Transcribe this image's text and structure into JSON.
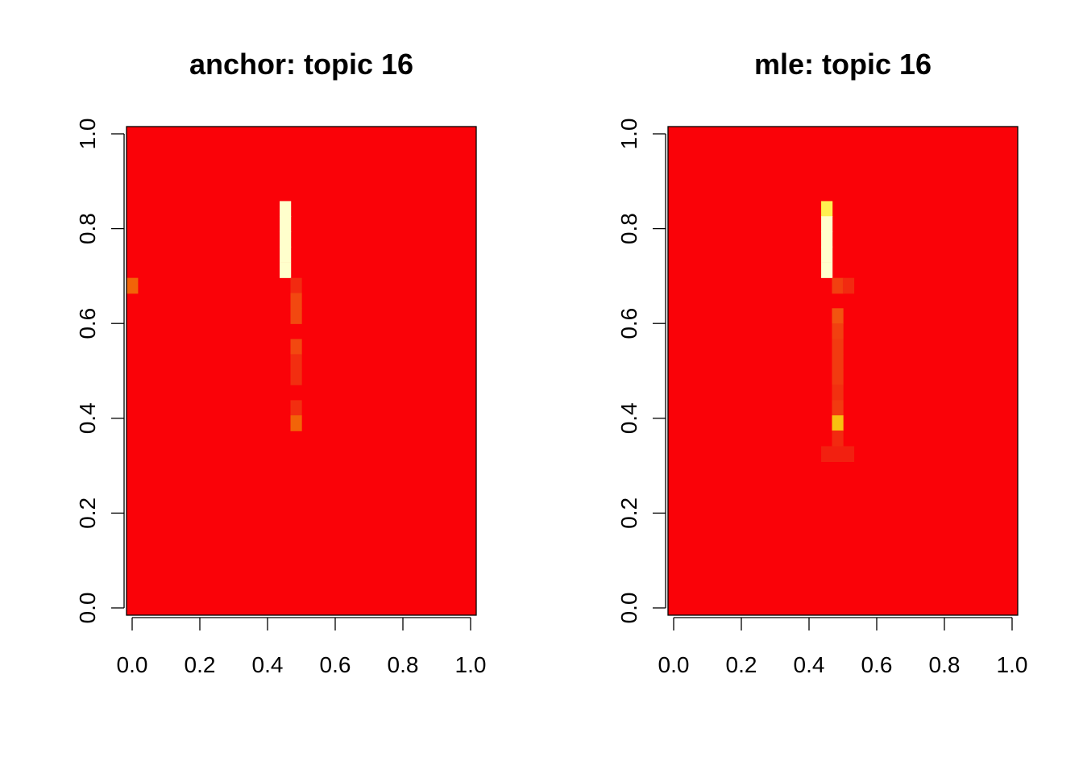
{
  "chart_data": [
    {
      "type": "heatmap",
      "title": "anchor: topic 16",
      "xlabel": "",
      "ylabel": "",
      "xlim": [
        0,
        1
      ],
      "ylim": [
        0,
        1
      ],
      "x_ticks": [
        "0.0",
        "0.2",
        "0.4",
        "0.6",
        "0.8",
        "1.0"
      ],
      "y_ticks": [
        "0.0",
        "0.2",
        "0.4",
        "0.6",
        "0.8",
        "1.0"
      ],
      "grid": false,
      "background_color": "#FA0208",
      "cell_width": 0.0323,
      "cell_height": 0.0323,
      "cells": [
        {
          "x": 0.0,
          "y": 0.68,
          "color": "#F26408"
        },
        {
          "x": 0.452,
          "y": 0.842,
          "color": "#FFFFCC"
        },
        {
          "x": 0.452,
          "y": 0.81,
          "color": "#FFFFCC"
        },
        {
          "x": 0.452,
          "y": 0.778,
          "color": "#FFFFCC"
        },
        {
          "x": 0.452,
          "y": 0.746,
          "color": "#FFFFCC"
        },
        {
          "x": 0.452,
          "y": 0.713,
          "color": "#FFFFCC"
        },
        {
          "x": 0.484,
          "y": 0.68,
          "color": "#F22A10"
        },
        {
          "x": 0.484,
          "y": 0.648,
          "color": "#F24810"
        },
        {
          "x": 0.484,
          "y": 0.616,
          "color": "#F24810"
        },
        {
          "x": 0.484,
          "y": 0.551,
          "color": "#F24810"
        },
        {
          "x": 0.484,
          "y": 0.519,
          "color": "#F22E10"
        },
        {
          "x": 0.484,
          "y": 0.487,
          "color": "#F22E10"
        },
        {
          "x": 0.484,
          "y": 0.422,
          "color": "#F22E10"
        },
        {
          "x": 0.484,
          "y": 0.39,
          "color": "#F26408"
        }
      ]
    },
    {
      "type": "heatmap",
      "title": "mle: topic 16",
      "xlabel": "",
      "ylabel": "",
      "xlim": [
        0,
        1
      ],
      "ylim": [
        0,
        1
      ],
      "x_ticks": [
        "0.0",
        "0.2",
        "0.4",
        "0.6",
        "0.8",
        "1.0"
      ],
      "y_ticks": [
        "0.0",
        "0.2",
        "0.4",
        "0.6",
        "0.8",
        "1.0"
      ],
      "grid": false,
      "background_color": "#FA0208",
      "cell_width": 0.0323,
      "cell_height": 0.0323,
      "cells": [
        {
          "x": 0.452,
          "y": 0.842,
          "color": "#FFF050"
        },
        {
          "x": 0.452,
          "y": 0.81,
          "color": "#FFFFCC"
        },
        {
          "x": 0.452,
          "y": 0.778,
          "color": "#FFFFCC"
        },
        {
          "x": 0.452,
          "y": 0.746,
          "color": "#FFFFCC"
        },
        {
          "x": 0.452,
          "y": 0.713,
          "color": "#FFFFCC"
        },
        {
          "x": 0.484,
          "y": 0.68,
          "color": "#F24010"
        },
        {
          "x": 0.516,
          "y": 0.68,
          "color": "#F22A10"
        },
        {
          "x": 0.484,
          "y": 0.616,
          "color": "#F25410"
        },
        {
          "x": 0.484,
          "y": 0.584,
          "color": "#F24010"
        },
        {
          "x": 0.484,
          "y": 0.551,
          "color": "#F23A10"
        },
        {
          "x": 0.484,
          "y": 0.519,
          "color": "#F23A10"
        },
        {
          "x": 0.484,
          "y": 0.487,
          "color": "#F23A10"
        },
        {
          "x": 0.484,
          "y": 0.455,
          "color": "#F23010"
        },
        {
          "x": 0.484,
          "y": 0.422,
          "color": "#F23A10"
        },
        {
          "x": 0.484,
          "y": 0.39,
          "color": "#F8C010"
        },
        {
          "x": 0.484,
          "y": 0.358,
          "color": "#F22A10"
        },
        {
          "x": 0.452,
          "y": 0.325,
          "color": "#F22010"
        },
        {
          "x": 0.484,
          "y": 0.325,
          "color": "#F22010"
        },
        {
          "x": 0.516,
          "y": 0.325,
          "color": "#F22010"
        }
      ]
    }
  ]
}
